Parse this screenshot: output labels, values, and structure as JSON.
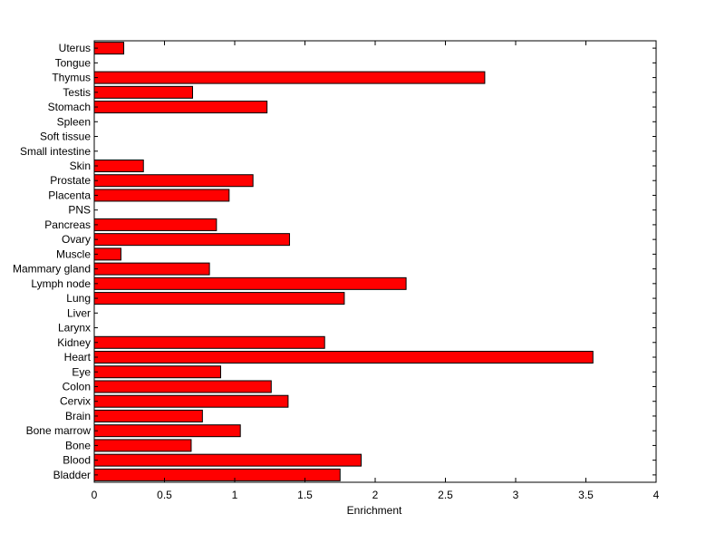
{
  "chart_data": {
    "type": "bar",
    "orientation": "horizontal",
    "title": "",
    "xlabel": "Enrichment",
    "ylabel": "",
    "xlim": [
      0,
      4
    ],
    "xticks": [
      0,
      0.5,
      1,
      1.5,
      2,
      2.5,
      3,
      3.5,
      4
    ],
    "xtick_labels": [
      "0",
      "0.5",
      "1",
      "1.5",
      "2",
      "2.5",
      "3",
      "3.5",
      "4"
    ],
    "grid": false,
    "legend": "none",
    "bar_color": "#ff0000",
    "bar_edge_color": "#000000",
    "categories": [
      "Bladder",
      "Blood",
      "Bone",
      "Bone marrow",
      "Brain",
      "Cervix",
      "Colon",
      "Eye",
      "Heart",
      "Kidney",
      "Larynx",
      "Liver",
      "Lung",
      "Lymph node",
      "Mammary gland",
      "Muscle",
      "Ovary",
      "Pancreas",
      "PNS",
      "Placenta",
      "Prostate",
      "Skin",
      "Small intestine",
      "Soft tissue",
      "Spleen",
      "Stomach",
      "Testis",
      "Thymus",
      "Tongue",
      "Uterus"
    ],
    "values": [
      1.75,
      1.9,
      0.69,
      1.04,
      0.77,
      1.38,
      1.26,
      0.9,
      3.55,
      1.64,
      0,
      0,
      1.78,
      2.22,
      0.82,
      0.19,
      1.39,
      0.87,
      0,
      0.96,
      1.13,
      0.35,
      0,
      0,
      0,
      1.23,
      0.7,
      2.78,
      0,
      0.21
    ]
  }
}
